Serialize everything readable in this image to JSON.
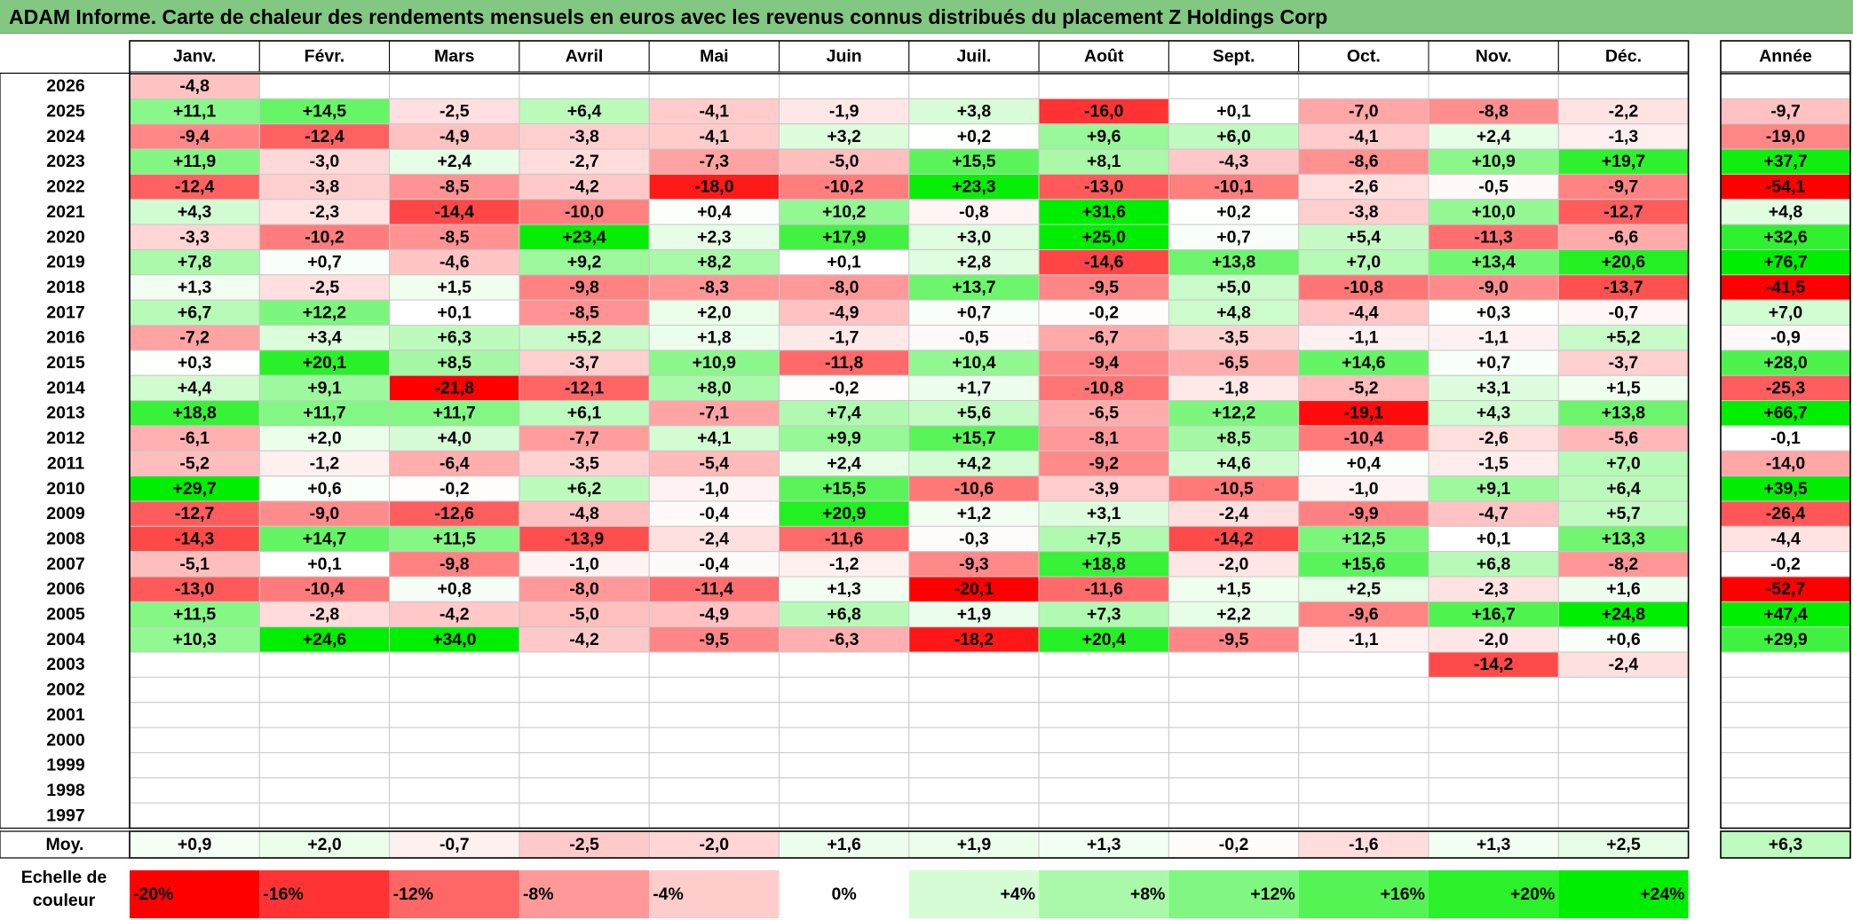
{
  "title": "ADAM Informe. Carte de chaleur des rendements mensuels en euros avec les revenus connus distribués du placement Z Holdings Corp",
  "chart_data": {
    "type": "heatmap",
    "months": [
      "Janv.",
      "Févr.",
      "Mars",
      "Avril",
      "Mai",
      "Juin",
      "Juil.",
      "Août",
      "Sept.",
      "Oct.",
      "Nov.",
      "Déc."
    ],
    "year_header": "Année",
    "rows": [
      {
        "year": "2026",
        "values": [
          -4.8,
          null,
          null,
          null,
          null,
          null,
          null,
          null,
          null,
          null,
          null,
          null
        ],
        "annual": null
      },
      {
        "year": "2025",
        "values": [
          11.1,
          14.5,
          -2.5,
          6.4,
          -4.1,
          -1.9,
          3.8,
          -16.0,
          0.1,
          -7.0,
          -8.8,
          -2.2
        ],
        "annual": -9.7
      },
      {
        "year": "2024",
        "values": [
          -9.4,
          -12.4,
          -4.9,
          -3.8,
          -4.1,
          3.2,
          0.2,
          9.6,
          6.0,
          -4.1,
          2.4,
          -1.3
        ],
        "annual": -19.0
      },
      {
        "year": "2023",
        "values": [
          11.9,
          -3.0,
          2.4,
          -2.7,
          -7.3,
          -5.0,
          15.5,
          8.1,
          -4.3,
          -8.6,
          10.9,
          19.7
        ],
        "annual": 37.7
      },
      {
        "year": "2022",
        "values": [
          -12.4,
          -3.8,
          -8.5,
          -4.2,
          -18.0,
          -10.2,
          23.3,
          -13.0,
          -10.1,
          -2.6,
          -0.5,
          -9.7
        ],
        "annual": -54.1
      },
      {
        "year": "2021",
        "values": [
          4.3,
          -2.3,
          -14.4,
          -10.0,
          0.4,
          10.2,
          -0.8,
          31.6,
          0.2,
          -3.8,
          10.0,
          -12.7
        ],
        "annual": 4.8
      },
      {
        "year": "2020",
        "values": [
          -3.3,
          -10.2,
          -8.5,
          23.4,
          2.3,
          17.9,
          3.0,
          25.0,
          0.7,
          5.4,
          -11.3,
          -6.6
        ],
        "annual": 32.6
      },
      {
        "year": "2019",
        "values": [
          7.8,
          0.7,
          -4.6,
          9.2,
          8.2,
          0.1,
          2.8,
          -14.6,
          13.8,
          7.0,
          13.4,
          20.6
        ],
        "annual": 76.7
      },
      {
        "year": "2018",
        "values": [
          1.3,
          -2.5,
          1.5,
          -9.8,
          -8.3,
          -8.0,
          13.7,
          -9.5,
          5.0,
          -10.8,
          -9.0,
          -13.7
        ],
        "annual": -41.5
      },
      {
        "year": "2017",
        "values": [
          6.7,
          12.2,
          0.1,
          -8.5,
          2.0,
          -4.9,
          0.7,
          -0.2,
          4.8,
          -4.4,
          0.3,
          -0.7
        ],
        "annual": 7.0
      },
      {
        "year": "2016",
        "values": [
          -7.2,
          3.4,
          6.3,
          5.2,
          1.8,
          -1.7,
          -0.5,
          -6.7,
          -3.5,
          -1.1,
          -1.1,
          5.2
        ],
        "annual": -0.9
      },
      {
        "year": "2015",
        "values": [
          0.3,
          20.1,
          8.5,
          -3.7,
          10.9,
          -11.8,
          10.4,
          -9.4,
          -6.5,
          14.6,
          0.7,
          -3.7
        ],
        "annual": 28.0
      },
      {
        "year": "2014",
        "values": [
          4.4,
          9.1,
          -21.8,
          -12.1,
          8.0,
          -0.2,
          1.7,
          -10.8,
          -1.8,
          -5.2,
          3.1,
          1.5
        ],
        "annual": -25.3
      },
      {
        "year": "2013",
        "values": [
          18.8,
          11.7,
          11.7,
          6.1,
          -7.1,
          7.4,
          5.6,
          -6.5,
          12.2,
          -19.1,
          4.3,
          13.8
        ],
        "annual": 66.7
      },
      {
        "year": "2012",
        "values": [
          -6.1,
          2.0,
          4.0,
          -7.7,
          4.1,
          9.9,
          15.7,
          -8.1,
          8.5,
          -10.4,
          -2.6,
          -5.6
        ],
        "annual": -0.1
      },
      {
        "year": "2011",
        "values": [
          -5.2,
          -1.2,
          -6.4,
          -3.5,
          -5.4,
          2.4,
          4.2,
          -9.2,
          4.6,
          0.4,
          -1.5,
          7.0
        ],
        "annual": -14.0
      },
      {
        "year": "2010",
        "values": [
          29.7,
          0.6,
          -0.2,
          6.2,
          -1.0,
          15.5,
          -10.6,
          -3.9,
          -10.5,
          -1.0,
          9.1,
          6.4
        ],
        "annual": 39.5
      },
      {
        "year": "2009",
        "values": [
          -12.7,
          -9.0,
          -12.6,
          -4.8,
          -0.4,
          20.9,
          1.2,
          3.1,
          -2.4,
          -9.9,
          -4.7,
          5.7
        ],
        "annual": -26.4
      },
      {
        "year": "2008",
        "values": [
          -14.3,
          14.7,
          11.5,
          -13.9,
          -2.4,
          -11.6,
          -0.3,
          7.5,
          -14.2,
          12.5,
          0.1,
          13.3
        ],
        "annual": -4.4
      },
      {
        "year": "2007",
        "values": [
          -5.1,
          0.1,
          -9.8,
          -1.0,
          -0.4,
          -1.2,
          -9.3,
          18.8,
          -2.0,
          15.6,
          6.8,
          -8.2
        ],
        "annual": -0.2
      },
      {
        "year": "2006",
        "values": [
          -13.0,
          -10.4,
          0.8,
          -8.0,
          -11.4,
          1.3,
          -20.1,
          -11.6,
          1.5,
          2.5,
          -2.3,
          1.6
        ],
        "annual": -52.7
      },
      {
        "year": "2005",
        "values": [
          11.5,
          -2.8,
          -4.2,
          -5.0,
          -4.9,
          6.8,
          1.9,
          7.3,
          2.2,
          -9.6,
          16.7,
          24.8
        ],
        "annual": 47.4
      },
      {
        "year": "2004",
        "values": [
          10.3,
          24.6,
          34.0,
          -4.2,
          -9.5,
          -6.3,
          -18.2,
          20.4,
          -9.5,
          -1.1,
          -2.0,
          0.6
        ],
        "annual": 29.9
      },
      {
        "year": "2003",
        "values": [
          null,
          null,
          null,
          null,
          null,
          null,
          null,
          null,
          null,
          null,
          -14.2,
          -2.4
        ],
        "annual": null
      },
      {
        "year": "2002",
        "values": [
          null,
          null,
          null,
          null,
          null,
          null,
          null,
          null,
          null,
          null,
          null,
          null
        ],
        "annual": null
      },
      {
        "year": "2001",
        "values": [
          null,
          null,
          null,
          null,
          null,
          null,
          null,
          null,
          null,
          null,
          null,
          null
        ],
        "annual": null
      },
      {
        "year": "2000",
        "values": [
          null,
          null,
          null,
          null,
          null,
          null,
          null,
          null,
          null,
          null,
          null,
          null
        ],
        "annual": null
      },
      {
        "year": "1999",
        "values": [
          null,
          null,
          null,
          null,
          null,
          null,
          null,
          null,
          null,
          null,
          null,
          null
        ],
        "annual": null
      },
      {
        "year": "1998",
        "values": [
          null,
          null,
          null,
          null,
          null,
          null,
          null,
          null,
          null,
          null,
          null,
          null
        ],
        "annual": null
      },
      {
        "year": "1997",
        "values": [
          null,
          null,
          null,
          null,
          null,
          null,
          null,
          null,
          null,
          null,
          null,
          null
        ],
        "annual": null
      }
    ],
    "average_label": "Moy.",
    "averages": [
      0.9,
      2.0,
      -0.7,
      -2.5,
      -2.0,
      1.6,
      1.9,
      1.3,
      -0.2,
      -1.6,
      1.3,
      2.5
    ],
    "average_annual": 6.3,
    "scale_label": "Echelle de couleur",
    "scale": [
      {
        "label": "-20%",
        "value": -20
      },
      {
        "label": "-16%",
        "value": -16
      },
      {
        "label": "-12%",
        "value": -12
      },
      {
        "label": "-8%",
        "value": -8
      },
      {
        "label": "-4%",
        "value": -4
      },
      {
        "label": "0%",
        "value": 0
      },
      {
        "label": "+4%",
        "value": 4
      },
      {
        "label": "+8%",
        "value": 8
      },
      {
        "label": "+12%",
        "value": 12
      },
      {
        "label": "+16%",
        "value": 16
      },
      {
        "label": "+20%",
        "value": 20
      },
      {
        "label": "+24%",
        "value": 24
      }
    ],
    "colors": {
      "negative_max": "#ff0000",
      "neutral": "#ffffff",
      "positive_max": "#00ee00",
      "title_background": "#82c882"
    }
  }
}
